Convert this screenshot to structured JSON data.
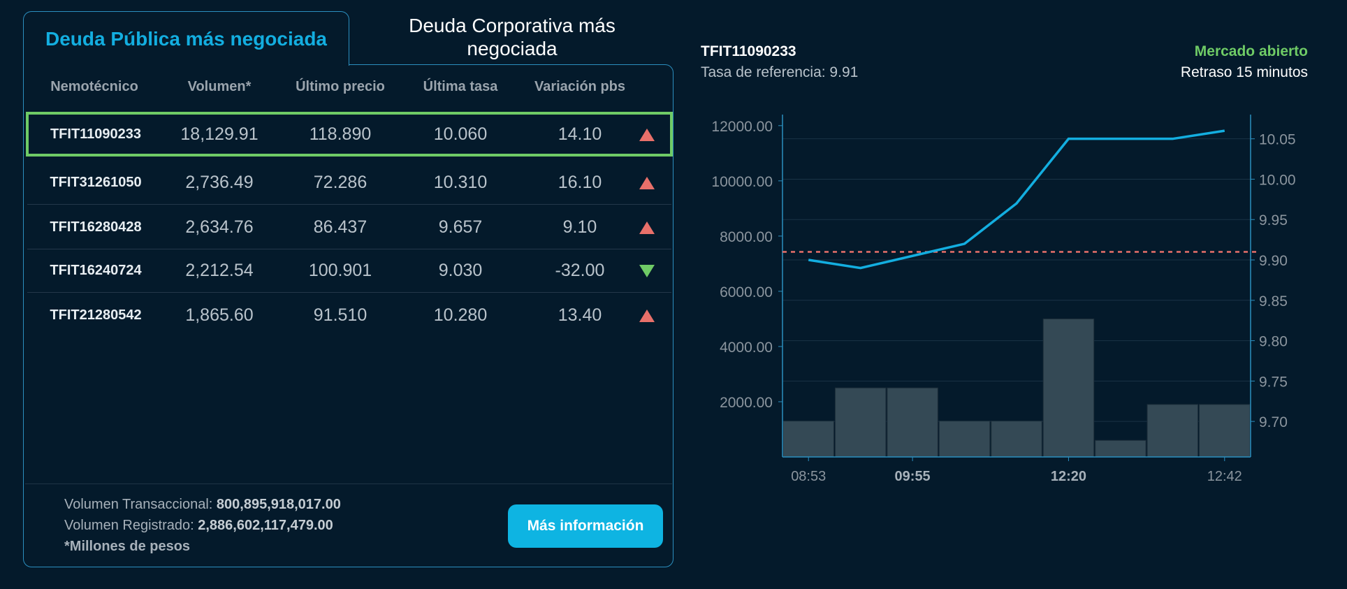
{
  "tabs": [
    {
      "label": "Deuda Pública más negociada",
      "active": true
    },
    {
      "label": "Deuda Corporativa más negociada",
      "active": false
    }
  ],
  "table": {
    "headers": [
      "Nemotécnico",
      "Volumen*",
      "Último precio",
      "Última tasa",
      "Variación pbs"
    ],
    "rows": [
      {
        "id": "TFIT11090233",
        "volume": "18,129.91",
        "price": "118.890",
        "rate": "10.060",
        "variation": "14.10",
        "direction": "up",
        "selected": true
      },
      {
        "id": "TFIT31261050",
        "volume": "2,736.49",
        "price": "72.286",
        "rate": "10.310",
        "variation": "16.10",
        "direction": "up"
      },
      {
        "id": "TFIT16280428",
        "volume": "2,634.76",
        "price": "86.437",
        "rate": "9.657",
        "variation": "9.10",
        "direction": "up"
      },
      {
        "id": "TFIT16240724",
        "volume": "2,212.54",
        "price": "100.901",
        "rate": "9.030",
        "variation": "-32.00",
        "direction": "down"
      },
      {
        "id": "TFIT21280542",
        "volume": "1,865.60",
        "price": "91.510",
        "rate": "10.280",
        "variation": "13.40",
        "direction": "up"
      }
    ]
  },
  "footer": {
    "vol_trans_label": "Volumen Transaccional: ",
    "vol_trans_value": "800,895,918,017.00",
    "vol_reg_label": "Volumen Registrado: ",
    "vol_reg_value": "2,886,602,117,479.00",
    "note": "*Millones de pesos",
    "button": "Más información"
  },
  "detail": {
    "title": "TFIT11090233",
    "reference": "Tasa de referencia: 9.91",
    "status": "Mercado abierto",
    "delay": "Retraso 15 minutos"
  },
  "colors": {
    "accent": "#13aee0",
    "up": "#e8706a",
    "down": "#6fcb66",
    "bars": "#344955"
  },
  "chart_data": {
    "type": "bar+line",
    "x": [
      "08:53",
      "",
      "09:55",
      "",
      "",
      "12:20",
      "",
      "",
      "12:42"
    ],
    "x_tick_labels": [
      {
        "index": 0,
        "label": "08:53",
        "bold": false
      },
      {
        "index": 2,
        "label": "09:55",
        "bold": true
      },
      {
        "index": 5,
        "label": "12:20",
        "bold": true
      },
      {
        "index": 8,
        "label": "12:42",
        "bold": false
      }
    ],
    "volume": [
      1300,
      2500,
      2500,
      1300,
      1300,
      5000,
      600,
      1900,
      1900
    ],
    "rate": [
      9.9,
      9.89,
      9.905,
      9.92,
      9.97,
      10.05,
      10.05,
      10.05,
      10.06
    ],
    "reference_rate": 9.91,
    "left_axis": {
      "ticks": [
        "2000.00",
        "4000.00",
        "6000.00",
        "8000.00",
        "10000.00",
        "12000.00"
      ],
      "values": [
        2000,
        4000,
        6000,
        8000,
        10000,
        12000
      ],
      "ylim": [
        0,
        12400
      ]
    },
    "right_axis": {
      "ticks": [
        "9.70",
        "9.75",
        "9.80",
        "9.85",
        "9.90",
        "9.95",
        "10.00",
        "10.05"
      ],
      "values": [
        9.7,
        9.75,
        9.8,
        9.85,
        9.9,
        9.95,
        10.0,
        10.05
      ],
      "ylim": [
        9.656,
        10.08
      ]
    }
  }
}
